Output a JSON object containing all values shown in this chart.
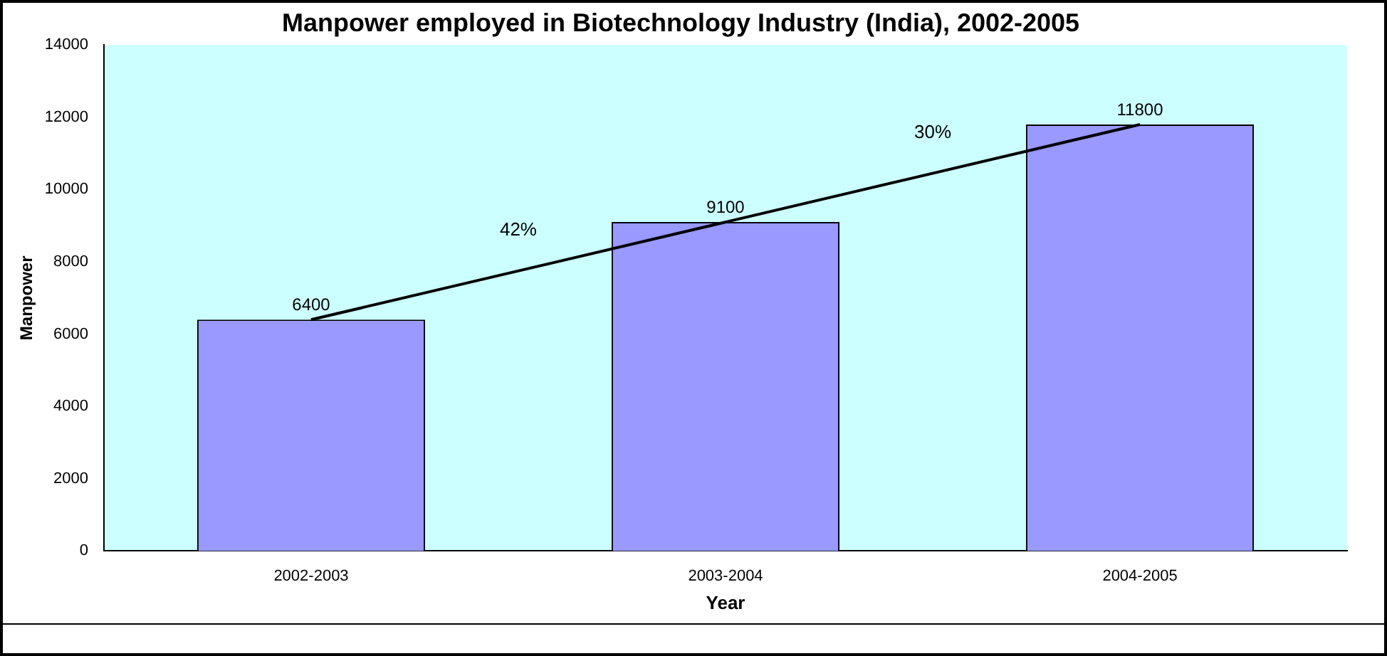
{
  "chart_data": {
    "type": "bar",
    "title": "Manpower employed in Biotechnology Industry (India), 2002-2005",
    "xlabel": "Year",
    "ylabel": "Manpower",
    "categories": [
      "2002-2003",
      "2003-2004",
      "2004-2005"
    ],
    "series": [
      {
        "color": "#9999ff",
        "values": [
          6400,
          9100,
          11800
        ],
        "value_labels": [
          "6400",
          "9100",
          "11800"
        ]
      },
      {
        "type": "line",
        "x": [
          "2002-2003",
          "2003-2004",
          "2004-2005"
        ],
        "color": "#000000",
        "values": [
          6400,
          9100,
          11800
        ]
      }
    ],
    "ylim": [
      0,
      14000
    ],
    "yticks": [
      0,
      2000,
      4000,
      6000,
      8000,
      10000,
      12000,
      14000
    ],
    "grid": false,
    "legend": false,
    "marker": "none",
    "line_style": "solid",
    "annotations": [
      "42%",
      "30%"
    ]
  }
}
